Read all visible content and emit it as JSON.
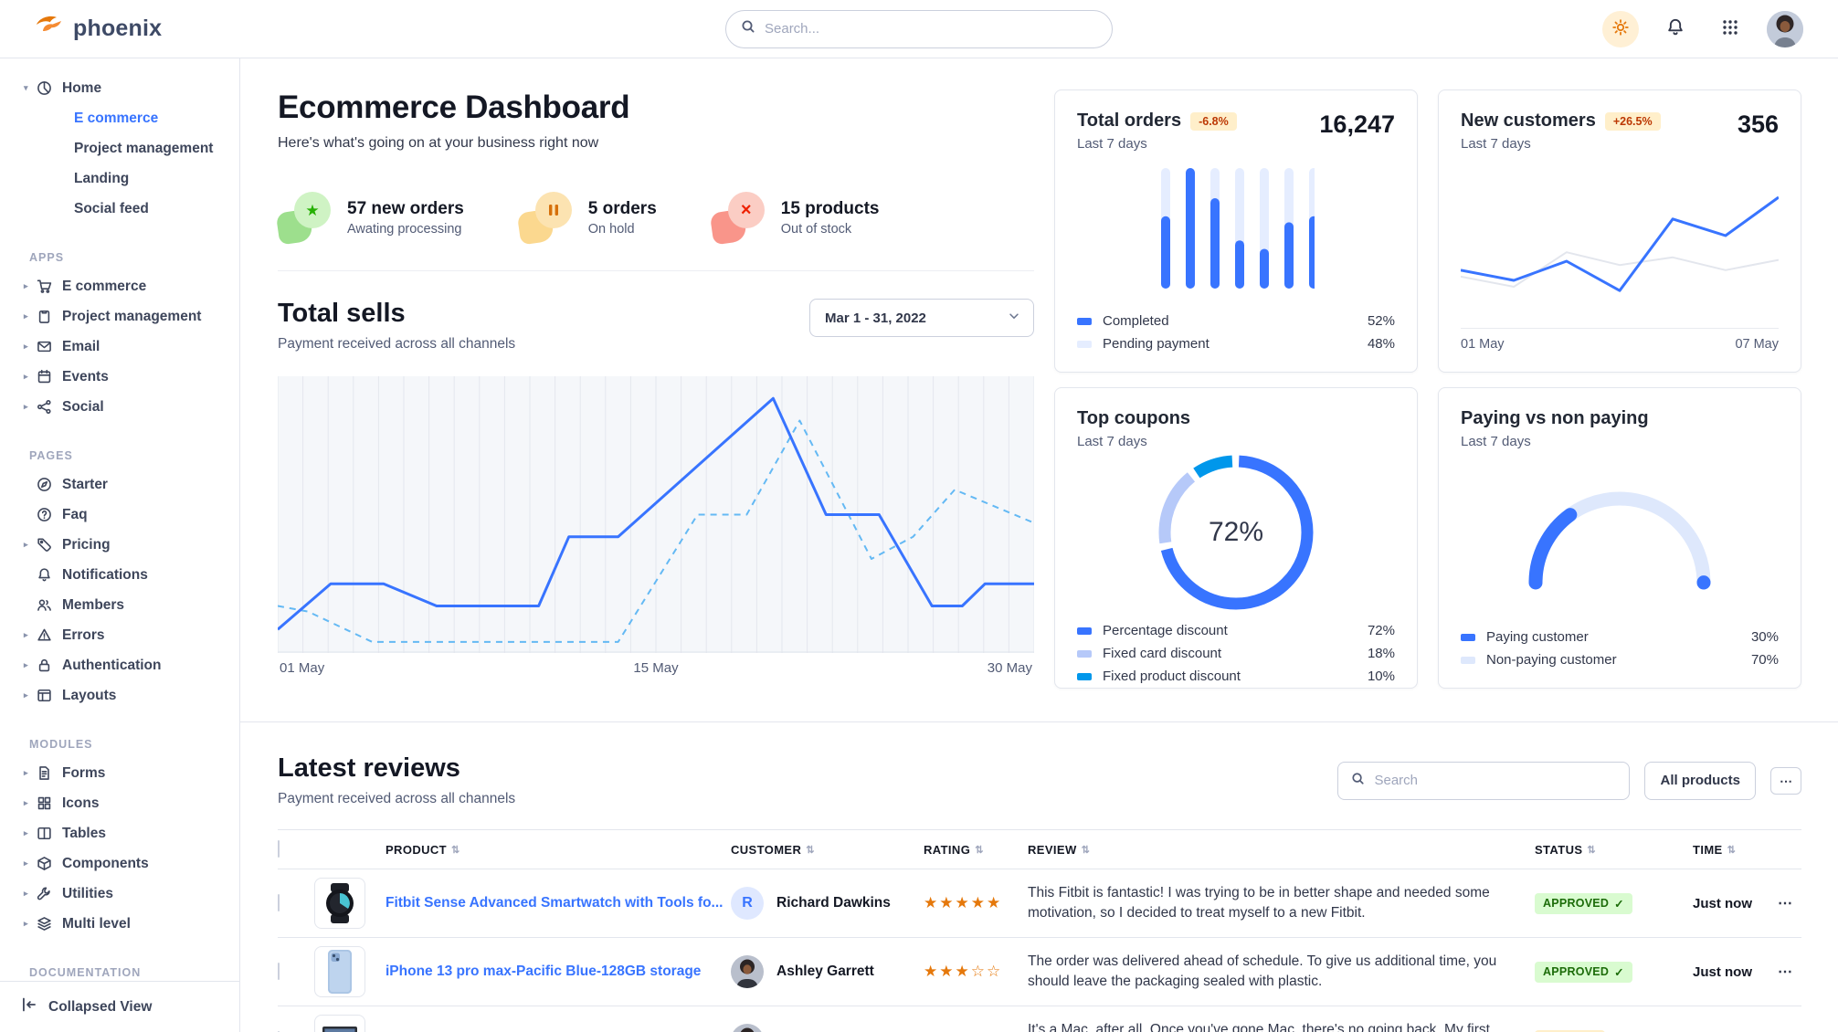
{
  "navbar": {
    "brand": "phoenix",
    "search_placeholder": "Search..."
  },
  "sidebar": {
    "home": {
      "label": "Home",
      "icon": "pie-chart",
      "children": [
        {
          "label": "E commerce",
          "active": true
        },
        {
          "label": "Project management",
          "active": false
        },
        {
          "label": "Landing",
          "active": false
        },
        {
          "label": "Social feed",
          "active": false
        }
      ]
    },
    "sections": [
      {
        "label": "APPS",
        "items": [
          {
            "label": "E commerce",
            "icon": "cart",
            "caret": true
          },
          {
            "label": "Project management",
            "icon": "clipboard",
            "caret": true
          },
          {
            "label": "Email",
            "icon": "envelope",
            "caret": true
          },
          {
            "label": "Events",
            "icon": "calendar",
            "caret": true
          },
          {
            "label": "Social",
            "icon": "share",
            "caret": true
          }
        ]
      },
      {
        "label": "PAGES",
        "items": [
          {
            "label": "Starter",
            "icon": "compass",
            "caret": false
          },
          {
            "label": "Faq",
            "icon": "question",
            "caret": false
          },
          {
            "label": "Pricing",
            "icon": "tag",
            "caret": true
          },
          {
            "label": "Notifications",
            "icon": "bell",
            "caret": false
          },
          {
            "label": "Members",
            "icon": "users",
            "caret": false
          },
          {
            "label": "Errors",
            "icon": "warning",
            "caret": true
          },
          {
            "label": "Authentication",
            "icon": "lock",
            "caret": true
          },
          {
            "label": "Layouts",
            "icon": "layout",
            "caret": true
          }
        ]
      },
      {
        "label": "MODULES",
        "items": [
          {
            "label": "Forms",
            "icon": "file",
            "caret": true
          },
          {
            "label": "Icons",
            "icon": "grid",
            "caret": true
          },
          {
            "label": "Tables",
            "icon": "table",
            "caret": true
          },
          {
            "label": "Components",
            "icon": "box",
            "caret": true
          },
          {
            "label": "Utilities",
            "icon": "wrench",
            "caret": true
          },
          {
            "label": "Multi level",
            "icon": "layers",
            "caret": true
          }
        ]
      },
      {
        "label": "DOCUMENTATION",
        "items": []
      }
    ],
    "footer": {
      "label": "Collapsed View"
    }
  },
  "page": {
    "title": "Ecommerce Dashboard",
    "subtitle": "Here's what's going on at your business right now"
  },
  "stats": [
    {
      "title": "57 new orders",
      "caption": "Awating processing",
      "tone": "success",
      "icon": "star"
    },
    {
      "title": "5 orders",
      "caption": "On hold",
      "tone": "warning",
      "icon": "pause"
    },
    {
      "title": "15 products",
      "caption": "Out of stock",
      "tone": "danger",
      "icon": "x"
    }
  ],
  "total_sells": {
    "title": "Total sells",
    "subtitle": "Payment received across all channels",
    "date_range": "Mar 1 - 31, 2022"
  },
  "cards": {
    "total_orders": {
      "title": "Total orders",
      "badge": "-6.8%",
      "period": "Last 7 days",
      "value": "16,247",
      "legend": [
        {
          "label": "Completed",
          "value": "52%",
          "color": "#3874ff"
        },
        {
          "label": "Pending payment",
          "value": "48%",
          "color": "#e5edff"
        }
      ]
    },
    "new_customers": {
      "title": "New customers",
      "badge": "+26.5%",
      "period": "Last 7 days",
      "value": "356",
      "x_labels": [
        "01 May",
        "07 May"
      ]
    },
    "top_coupons": {
      "title": "Top coupons",
      "period": "Last 7 days",
      "center_label": "72%",
      "legend": [
        {
          "label": "Percentage discount",
          "value": "72%",
          "color": "#3874ff"
        },
        {
          "label": "Fixed card discount",
          "value": "18%",
          "color": "#b6c9f9"
        },
        {
          "label": "Fixed product discount",
          "value": "10%",
          "color": "#0097eb"
        }
      ]
    },
    "paying": {
      "title": "Paying vs non paying",
      "period": "Last 7 days",
      "legend": [
        {
          "label": "Paying customer",
          "value": "30%",
          "color": "#3874ff"
        },
        {
          "label": "Non-paying customer",
          "value": "70%",
          "color": "#dee8fc"
        }
      ]
    }
  },
  "reviews": {
    "title": "Latest reviews",
    "subtitle": "Payment received across all channels",
    "search_placeholder": "Search",
    "all_products_label": "All products",
    "columns": [
      "PRODUCT",
      "CUSTOMER",
      "RATING",
      "REVIEW",
      "STATUS",
      "TIME"
    ],
    "rows": [
      {
        "product": "Fitbit Sense Advanced Smartwatch with Tools fo...",
        "thumb": "smartwatch",
        "customer": "Richard Dawkins",
        "avatar": {
          "kind": "initial",
          "text": "R"
        },
        "rating": 5,
        "rating_max": 5,
        "review": "This Fitbit is fantastic! I was trying to be in better shape and needed some motivation, so I decided to treat myself to a new Fitbit.",
        "status": {
          "label": "APPROVED",
          "tone": "success"
        },
        "time": "Just now"
      },
      {
        "product": "iPhone 13 pro max-Pacific Blue-128GB storage",
        "thumb": "phone",
        "customer": "Ashley Garrett",
        "avatar": {
          "kind": "photo",
          "text": ""
        },
        "rating": 3,
        "rating_max": 5,
        "review": "The order was delivered ahead of schedule. To give us additional time, you should leave the packaging sealed with plastic.",
        "status": {
          "label": "APPROVED",
          "tone": "success"
        },
        "time": "Just now"
      },
      {
        "product": "",
        "thumb": "laptop",
        "customer": "",
        "avatar": {
          "kind": "photo",
          "text": ""
        },
        "rating": 0,
        "rating_max": 5,
        "review": "It's a Mac, after all. Once you've gone Mac, there's no going back. My first Mac lasted",
        "status": {
          "label": "PENDING",
          "tone": "warning"
        },
        "time": ""
      }
    ]
  },
  "chart_data": [
    {
      "id": "total_sells",
      "type": "line",
      "title": "Total sells",
      "x_axis": {
        "labels": [
          "01 May",
          "15 May",
          "30 May"
        ],
        "gridlines": 31
      },
      "y_range": [
        0,
        100
      ],
      "grid": true,
      "legend_position": "none",
      "series": [
        {
          "name": "current",
          "style": "solid",
          "color": "#3874ff",
          "points": [
            [
              0,
              8.5
            ],
            [
              7,
              25
            ],
            [
              14,
              25
            ],
            [
              21,
              17
            ],
            [
              34.5,
              17
            ],
            [
              38.5,
              42
            ],
            [
              45,
              42
            ],
            [
              65.5,
              92
            ],
            [
              72.5,
              50
            ],
            [
              79.5,
              50
            ],
            [
              86.5,
              17
            ],
            [
              90.5,
              17
            ],
            [
              93.5,
              25
            ],
            [
              100,
              25
            ]
          ]
        },
        {
          "name": "previous",
          "style": "dashed",
          "color": "#64b9f4",
          "points": [
            [
              0,
              17
            ],
            [
              4,
              15
            ],
            [
              12.5,
              4
            ],
            [
              45,
              4
            ],
            [
              55.5,
              50
            ],
            [
              62,
              50
            ],
            [
              69,
              84
            ],
            [
              78.5,
              34
            ],
            [
              84,
              42
            ],
            [
              89.5,
              59
            ],
            [
              100,
              47
            ]
          ]
        }
      ]
    },
    {
      "id": "total_orders",
      "type": "bar",
      "title": "Total orders (last 7 days)",
      "y_range": [
        0,
        100
      ],
      "track_color": "#e5edff",
      "series": [
        {
          "name": "Completed",
          "color": "#3874ff",
          "values": [
            60,
            100,
            75,
            40,
            33,
            55,
            60
          ]
        }
      ]
    },
    {
      "id": "new_customers",
      "type": "line",
      "title": "New customers (last 7 days)",
      "x_axis": {
        "labels": [
          "01 May",
          "07 May"
        ]
      },
      "y_range": [
        0,
        100
      ],
      "series": [
        {
          "name": "previous",
          "color": "#e3e6ed",
          "points": [
            [
              0,
              33
            ],
            [
              16.7,
              25
            ],
            [
              33.3,
              52
            ],
            [
              50,
              42
            ],
            [
              66.7,
              48
            ],
            [
              83.3,
              38
            ],
            [
              100,
              46
            ]
          ]
        },
        {
          "name": "current",
          "color": "#3874ff",
          "points": [
            [
              0,
              38
            ],
            [
              16.7,
              30
            ],
            [
              33.3,
              45
            ],
            [
              50,
              22
            ],
            [
              66.7,
              78
            ],
            [
              83.3,
              65
            ],
            [
              100,
              95
            ]
          ]
        }
      ]
    },
    {
      "id": "top_coupons",
      "type": "pie",
      "title": "Top coupons",
      "center_label": "72%",
      "slices": [
        {
          "label": "Percentage discount",
          "value": 72,
          "color": "#3874ff"
        },
        {
          "label": "Fixed card discount",
          "value": 18,
          "color": "#b6c9f9"
        },
        {
          "label": "Fixed product discount",
          "value": 10,
          "color": "#0097eb"
        }
      ]
    },
    {
      "id": "paying_gauge",
      "type": "pie",
      "shape": "half-donut",
      "title": "Paying vs non paying",
      "slices": [
        {
          "label": "Paying customer",
          "value": 30,
          "color": "#3874ff"
        },
        {
          "label": "Non-paying customer",
          "value": 70,
          "color": "#dee8fc"
        }
      ]
    }
  ]
}
